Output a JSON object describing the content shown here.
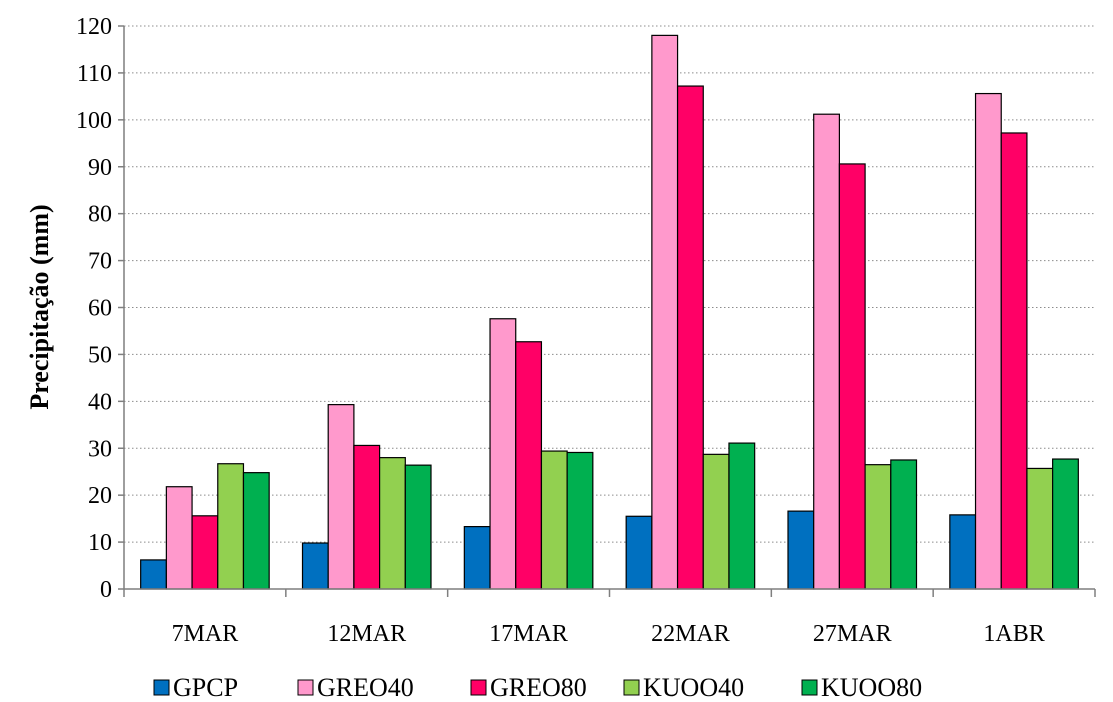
{
  "chart_data": {
    "type": "bar",
    "title": "",
    "xlabel": "",
    "ylabel": "Precipitação (mm)",
    "ylim": [
      0,
      120
    ],
    "yticks": [
      0,
      10,
      20,
      30,
      40,
      50,
      60,
      70,
      80,
      90,
      100,
      110,
      120
    ],
    "grid": "horizontal dotted",
    "legend_position": "bottom",
    "categories": [
      "7MAR",
      "12MAR",
      "17MAR",
      "22MAR",
      "27MAR",
      "1ABR"
    ],
    "series": [
      {
        "name": "GPCP",
        "color": "#0070c0",
        "values": [
          6.2,
          9.8,
          13.3,
          15.5,
          16.6,
          15.8
        ]
      },
      {
        "name": "GREO40",
        "color": "#ff99cc",
        "values": [
          21.8,
          39.3,
          57.6,
          118.0,
          101.2,
          105.6
        ]
      },
      {
        "name": "GREO80",
        "color": "#ff0066",
        "values": [
          15.6,
          30.6,
          52.7,
          107.2,
          90.6,
          97.2
        ]
      },
      {
        "name": "KUOO40",
        "color": "#92d050",
        "values": [
          26.7,
          28.0,
          29.4,
          28.7,
          26.5,
          25.7
        ]
      },
      {
        "name": "KUOO80",
        "color": "#00b050",
        "values": [
          24.8,
          26.4,
          29.1,
          31.1,
          27.5,
          27.7
        ]
      }
    ]
  }
}
